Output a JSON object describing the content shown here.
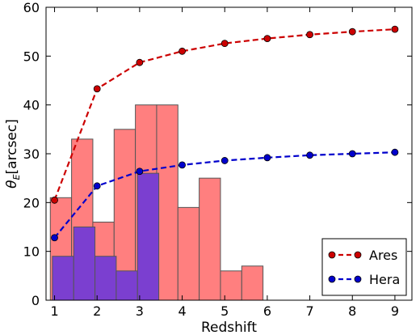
{
  "chart_data": {
    "type": "bar",
    "xlabel": "Redshift",
    "ylabel": "θ",
    "ylabel_subscript": "E",
    "ylabel_unit": "[arcsec]",
    "xlim": [
      0.8,
      9.4
    ],
    "ylim": [
      0,
      60
    ],
    "xticks": [
      1,
      2,
      3,
      4,
      5,
      6,
      7,
      8,
      9
    ],
    "yticks": [
      0,
      10,
      20,
      30,
      40,
      50,
      60
    ],
    "grid": false,
    "legend_position": "bottom-right",
    "histograms": [
      {
        "color": "#ff7f7f",
        "edge_color": "#555555",
        "bin_edges": [
          0.9,
          1.4,
          1.9,
          2.4,
          2.9,
          3.4,
          3.9,
          4.4,
          4.9,
          5.4,
          5.9
        ],
        "values": [
          21,
          33,
          16,
          35,
          40,
          40,
          19,
          25,
          6,
          7
        ]
      },
      {
        "color": "#7b3fd0",
        "edge_color": "#555555",
        "bin_edges": [
          0.95,
          1.45,
          1.95,
          2.45,
          2.95,
          3.45
        ],
        "values": [
          9,
          15,
          9,
          6,
          26
        ]
      }
    ],
    "series": [
      {
        "name": "Ares",
        "color": "#cc0000",
        "x": [
          1,
          2,
          3,
          4,
          5,
          6,
          7,
          8,
          9
        ],
        "values": [
          20.5,
          43.3,
          48.7,
          51.0,
          52.6,
          53.6,
          54.4,
          55.0,
          55.5
        ]
      },
      {
        "name": "Hera",
        "color": "#0000cc",
        "x": [
          1,
          2,
          3,
          4,
          5,
          6,
          7,
          8,
          9
        ],
        "values": [
          12.8,
          23.4,
          26.4,
          27.7,
          28.6,
          29.2,
          29.7,
          30.0,
          30.3
        ]
      }
    ]
  }
}
